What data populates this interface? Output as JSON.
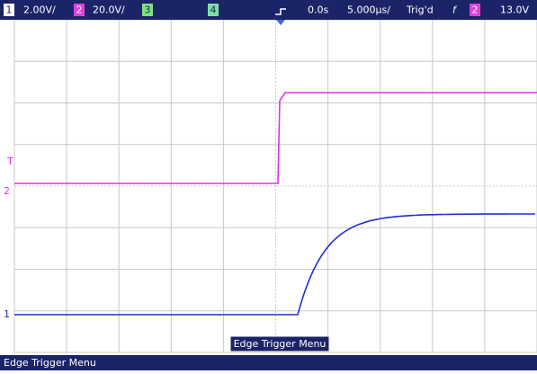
{
  "status_bar": {
    "ch1": {
      "label": "1",
      "scale": "2.00V/"
    },
    "ch2": {
      "label": "2",
      "scale": "20.0V/"
    },
    "ch3": {
      "label": "3"
    },
    "ch4": {
      "label": "4"
    },
    "time_delay": "0.0s",
    "time_scale": "5.000µs/",
    "trigger_state": "Trig'd",
    "trigger_slope": "f",
    "trigger_source": "2",
    "trigger_level": "13.0V"
  },
  "markers": {
    "trigger": "T",
    "ch2": "2",
    "ch1": "1"
  },
  "menu_label": "Edge Trigger Menu",
  "footer": "Edge Trigger Menu"
}
